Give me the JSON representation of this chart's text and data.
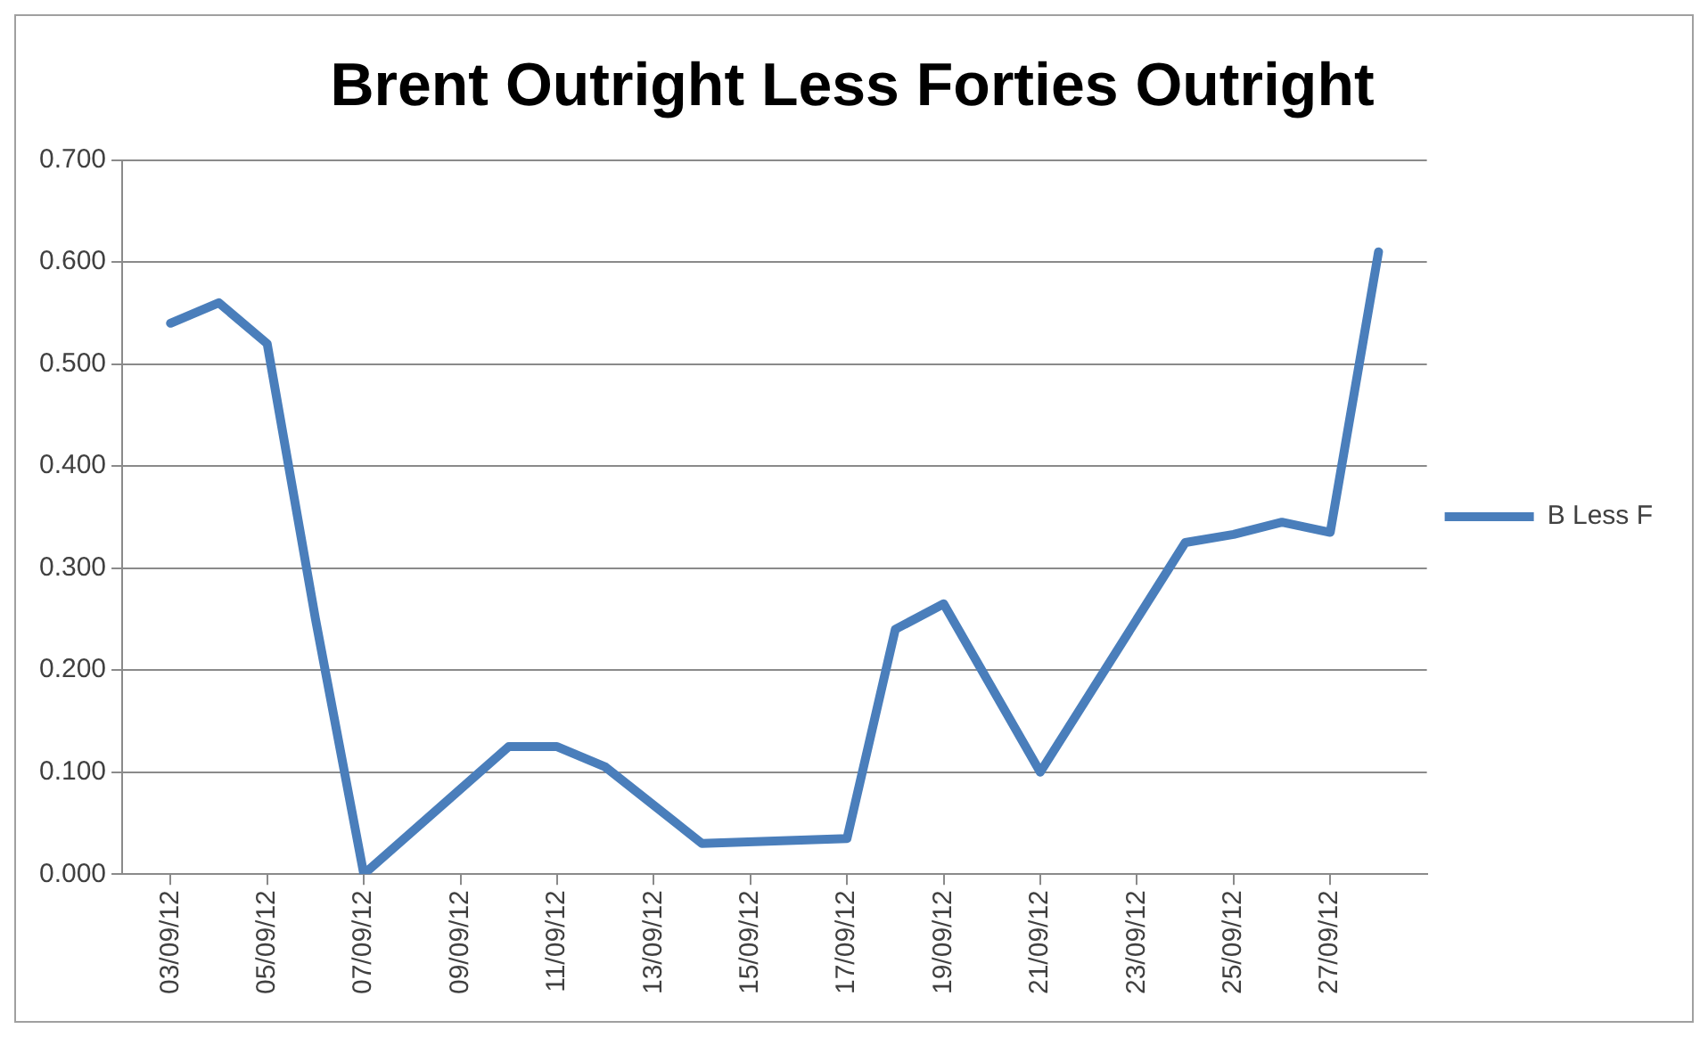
{
  "chart_data": {
    "type": "line",
    "title": "Brent Outright Less Forties Outright",
    "x": [
      "--09-03",
      "--09-04",
      "--09-05",
      "--09-06",
      "--09-07",
      "--09-10",
      "--09-11",
      "--09-12",
      "--09-14",
      "--09-17",
      "--09-18",
      "--09-19",
      "--09-21",
      "--09-24",
      "--09-25",
      "--09-26",
      "--09-27",
      "--09-28"
    ],
    "series": [
      {
        "name": "B Less F",
        "color": "#4a7ebb",
        "values": [
          0.54,
          0.56,
          0.52,
          0.25,
          0.0,
          0.125,
          0.125,
          0.105,
          0.03,
          0.035,
          0.24,
          0.265,
          0.1,
          0.325,
          0.333,
          0.345,
          0.335,
          0.61
        ]
      }
    ],
    "xlim": [
      "--09-02",
      "--09-29"
    ],
    "xticks": [
      {
        "value": "--09-03",
        "label": "03/09/12"
      },
      {
        "value": "--09-05",
        "label": "05/09/12"
      },
      {
        "value": "--09-07",
        "label": "07/09/12"
      },
      {
        "value": "--09-09",
        "label": "09/09/12"
      },
      {
        "value": "--09-11",
        "label": "11/09/12"
      },
      {
        "value": "--09-13",
        "label": "13/09/12"
      },
      {
        "value": "--09-15",
        "label": "15/09/12"
      },
      {
        "value": "--09-17",
        "label": "17/09/12"
      },
      {
        "value": "--09-19",
        "label": "19/09/12"
      },
      {
        "value": "--09-21",
        "label": "21/09/12"
      },
      {
        "value": "--09-23",
        "label": "23/09/12"
      },
      {
        "value": "--09-25",
        "label": "25/09/12"
      },
      {
        "value": "--09-27",
        "label": "27/09/12"
      }
    ],
    "ylim": [
      0,
      0.7
    ],
    "yticks": [
      {
        "value": 0,
        "label": "0.000"
      },
      {
        "value": 0.1,
        "label": "0.100"
      },
      {
        "value": 0.2,
        "label": "0.200"
      },
      {
        "value": 0.3,
        "label": "0.300"
      },
      {
        "value": 0.4,
        "label": "0.400"
      },
      {
        "value": 0.5,
        "label": "0.500"
      },
      {
        "value": 0.6,
        "label": "0.600"
      },
      {
        "value": 0.7,
        "label": "0.700"
      }
    ],
    "grid": "y",
    "legend": "right",
    "marker": "none",
    "line_style": "solid"
  }
}
